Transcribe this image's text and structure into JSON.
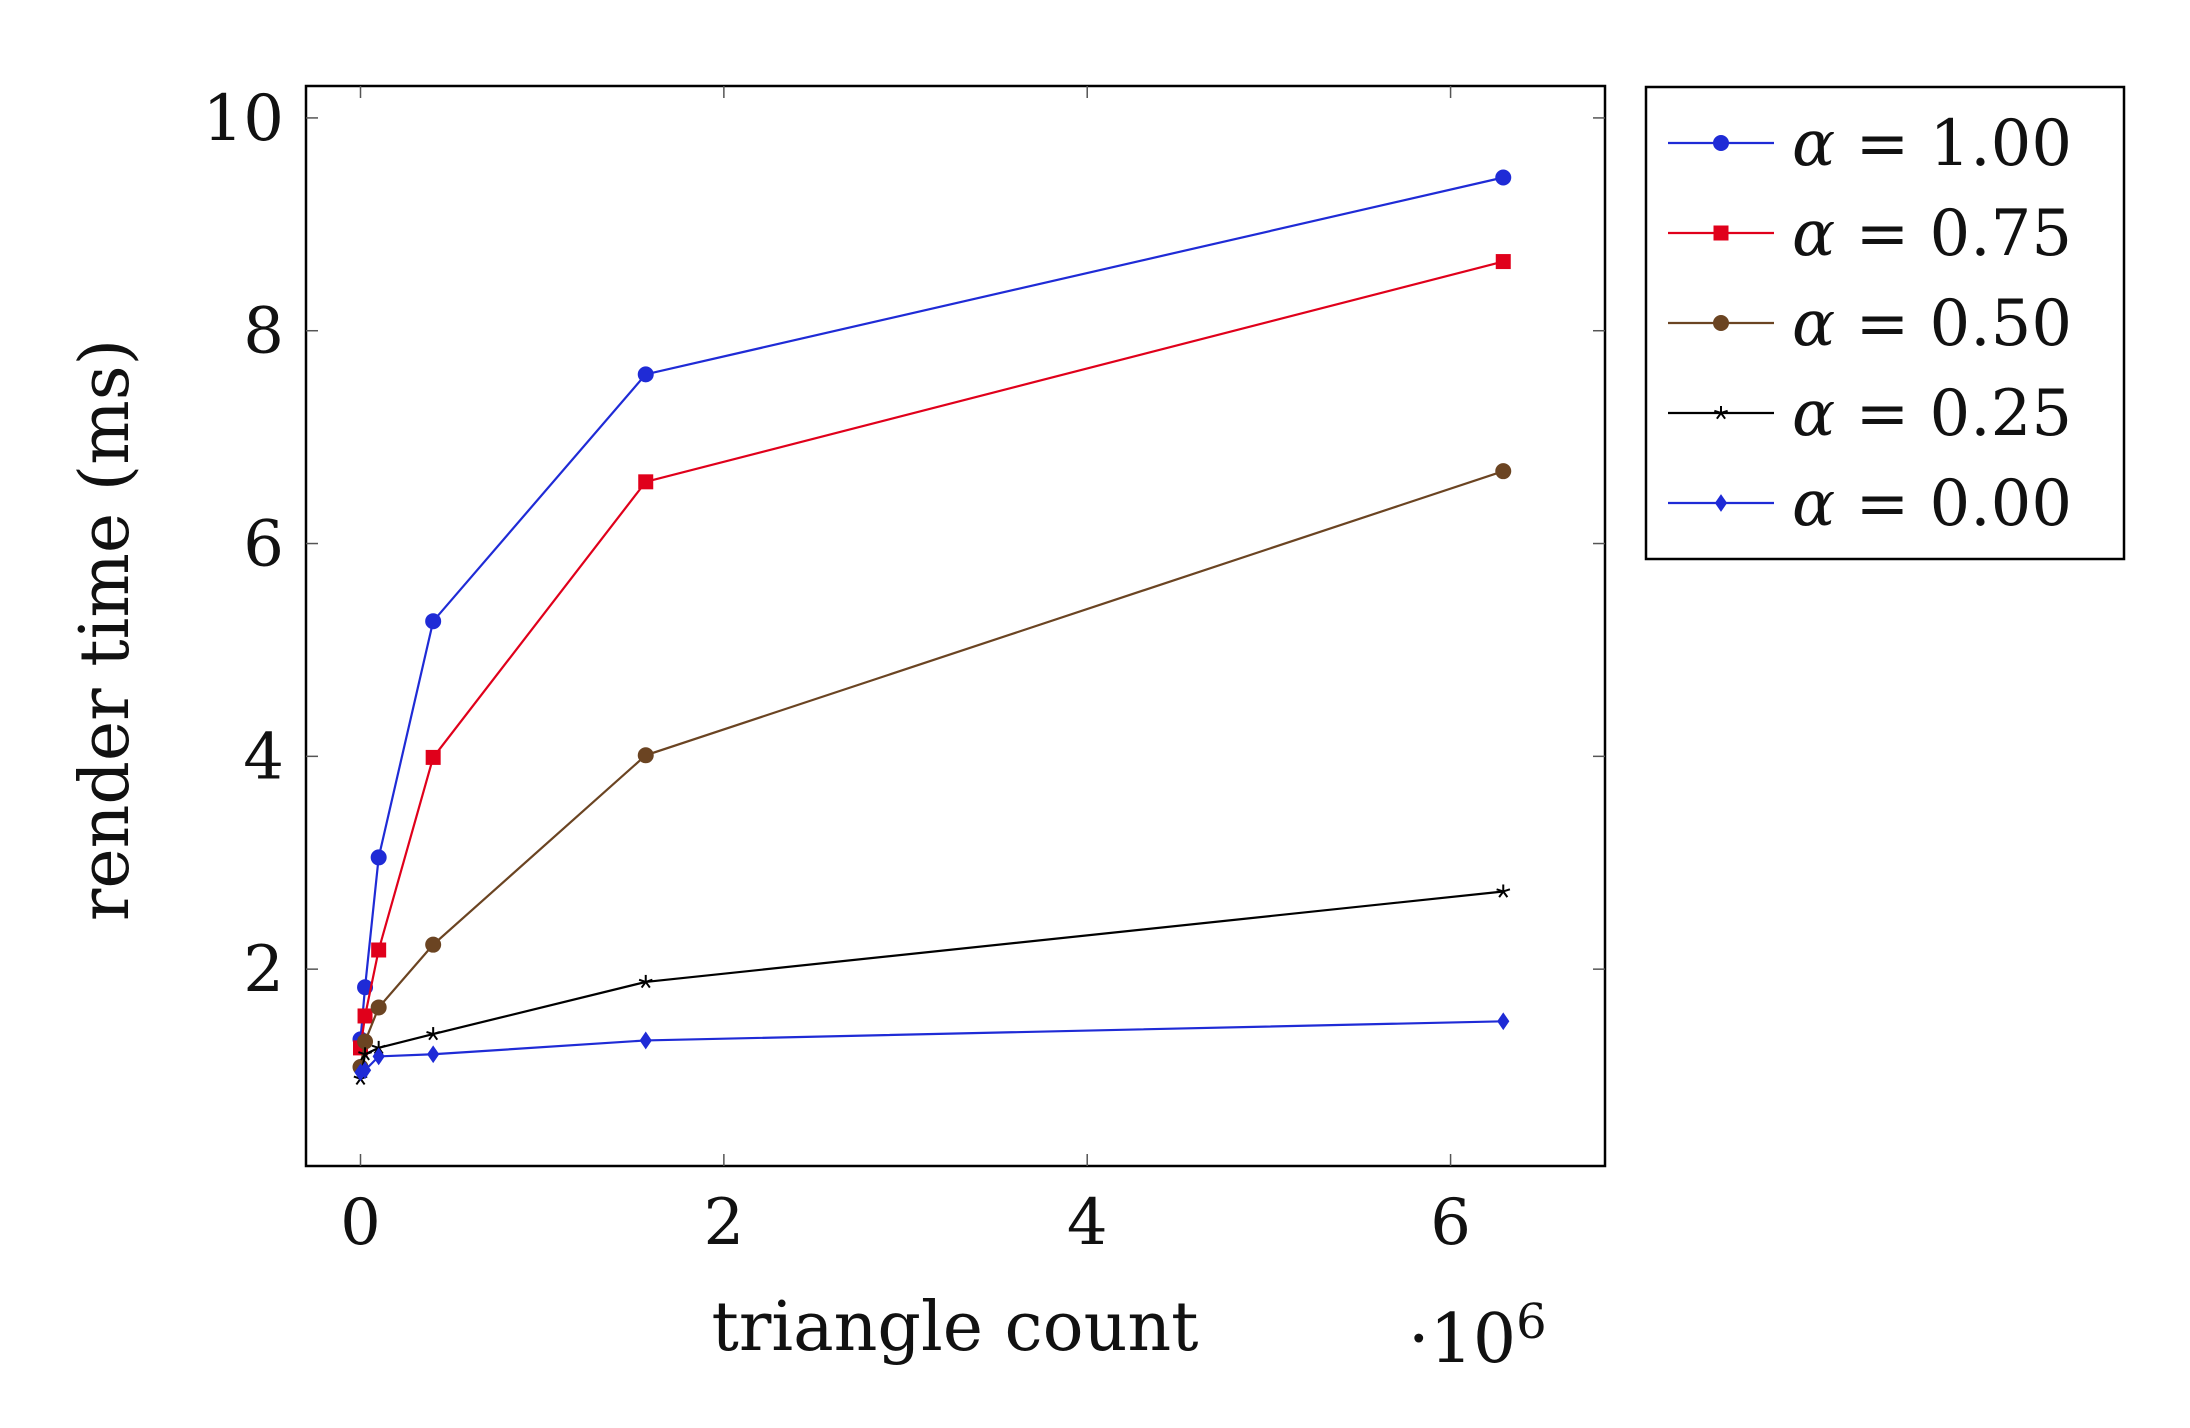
{
  "chart_data": {
    "type": "line",
    "xlabel": "triangle count",
    "x_multiplier": "·10",
    "x_multiplier_exp": "6",
    "ylabel": "render time (ms)",
    "xlim": [
      -0.3,
      6.85
    ],
    "ylim": [
      0.15,
      10.3
    ],
    "xticks": [
      0,
      2,
      4,
      6
    ],
    "yticks": [
      2,
      4,
      6,
      8,
      10
    ],
    "grid": false,
    "legend_position": "outside-right-top",
    "x": [
      0.0,
      0.025,
      0.1,
      0.4,
      1.57,
      6.29
    ],
    "series": [
      {
        "name": "α = 1.00",
        "color": "#1f2bd6",
        "marker": "circle",
        "values": [
          1.34,
          1.83,
          3.05,
          5.27,
          7.59,
          9.44
        ]
      },
      {
        "name": "α = 0.75",
        "color": "#e0001b",
        "marker": "square",
        "values": [
          1.26,
          1.56,
          2.18,
          3.99,
          6.58,
          8.65
        ]
      },
      {
        "name": "α = 0.50",
        "color": "#6b4422",
        "marker": "circle",
        "values": [
          1.08,
          1.32,
          1.64,
          2.23,
          4.01,
          6.68
        ]
      },
      {
        "name": "α = 0.25",
        "color": "#000000",
        "marker": "star",
        "values": [
          0.97,
          1.2,
          1.26,
          1.39,
          1.88,
          2.73
        ]
      },
      {
        "name": "α = 0.00",
        "color": "#1f2bd6",
        "marker": "diamond",
        "values": [
          1.03,
          1.05,
          1.18,
          1.2,
          1.33,
          1.51
        ]
      }
    ]
  }
}
